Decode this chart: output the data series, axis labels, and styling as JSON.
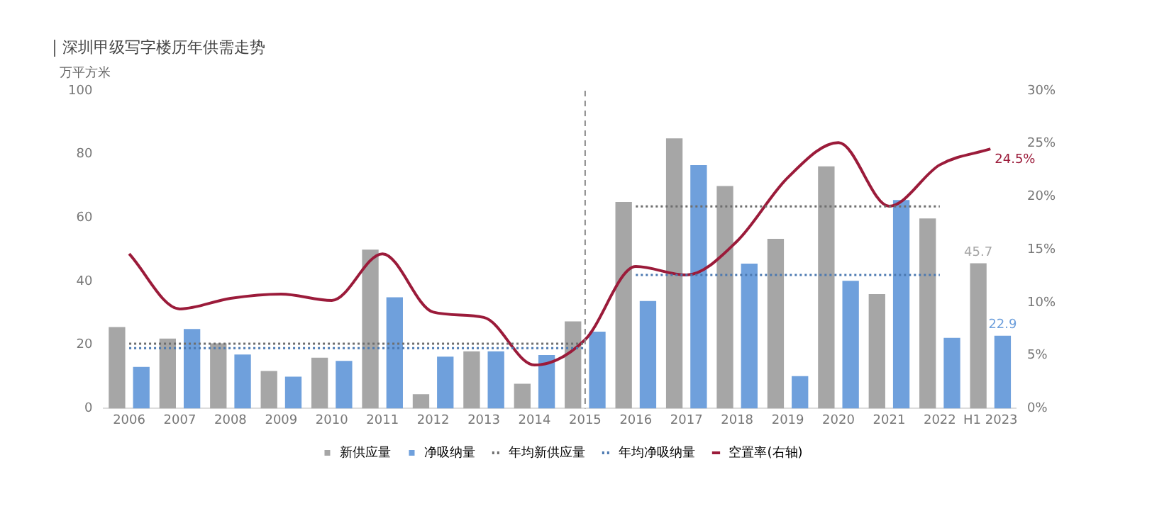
{
  "chart_data": {
    "type": "bar",
    "title": "深圳甲级写字楼历年供需走势",
    "ylabel": "万平方米",
    "categories": [
      "2006",
      "2007",
      "2008",
      "2009",
      "2010",
      "2011",
      "2012",
      "2013",
      "2014",
      "2015",
      "2016",
      "2017",
      "2018",
      "2019",
      "2020",
      "2021",
      "2022",
      "H1 2023"
    ],
    "series": [
      {
        "name": "新供应量",
        "color": "#a6a6a6",
        "values": [
          25.6,
          22,
          20.5,
          11.8,
          16,
          50,
          4.5,
          18,
          7.8,
          27.4,
          65,
          85,
          70,
          53.4,
          76.2,
          36,
          59.8,
          45.7
        ],
        "value_labels": [
          null,
          null,
          null,
          null,
          null,
          null,
          null,
          null,
          null,
          null,
          null,
          null,
          null,
          null,
          null,
          null,
          null,
          "45.7"
        ]
      },
      {
        "name": "净吸纳量",
        "color": "#6fa0dc",
        "values": [
          13.1,
          25,
          17,
          10,
          15,
          35,
          16.3,
          18,
          16.8,
          24.2,
          33.8,
          76.6,
          45.6,
          10.2,
          40.2,
          65.6,
          22.2,
          22.9
        ],
        "value_labels": [
          null,
          null,
          null,
          null,
          null,
          null,
          null,
          null,
          null,
          null,
          null,
          null,
          null,
          null,
          null,
          null,
          null,
          "22.9"
        ]
      },
      {
        "name": "年均新供应量",
        "type": "line",
        "line_style": "dotted",
        "color": "#6e6e6e",
        "values": [
          20.4,
          20.4,
          20.4,
          20.4,
          20.4,
          20.4,
          20.4,
          20.4,
          20.4,
          20.4,
          63.6,
          63.6,
          63.6,
          63.6,
          63.6,
          63.6,
          63.6,
          null
        ]
      },
      {
        "name": "年均净吸纳量",
        "type": "line",
        "line_style": "dotted",
        "color": "#4a78b0",
        "values": [
          19,
          19,
          19,
          19,
          19,
          19,
          19,
          19,
          19,
          19,
          42,
          42,
          42,
          42,
          42,
          42,
          42,
          null
        ]
      },
      {
        "name": "空置率(右轴)",
        "type": "line",
        "axis": "y2",
        "color": "#9b1b3a",
        "values": [
          14.6,
          9.4,
          10.4,
          10.8,
          10.2,
          14.6,
          9.1,
          8.6,
          4.1,
          6.5,
          13.4,
          12.6,
          15.8,
          21.8,
          25.1,
          19.1,
          23,
          24.5
        ],
        "value_labels": [
          null,
          null,
          null,
          null,
          null,
          null,
          null,
          null,
          null,
          null,
          null,
          null,
          null,
          null,
          null,
          null,
          null,
          "24.5%"
        ]
      }
    ],
    "ylim": [
      0,
      100
    ],
    "yticks": [
      0,
      20,
      40,
      60,
      80,
      100
    ],
    "y2lim": [
      0,
      30
    ],
    "y2ticks": [
      {
        "value": 0,
        "label": "0%"
      },
      {
        "value": 5,
        "label": "5%"
      },
      {
        "value": 10,
        "label": "10%"
      },
      {
        "value": 15,
        "label": "15%"
      },
      {
        "value": 20,
        "label": "20%"
      },
      {
        "value": 25,
        "label": "25%"
      },
      {
        "value": 30,
        "label": "30%"
      }
    ],
    "ref_lines": [
      {
        "axis": "x",
        "value": "2015",
        "line_style": "dashed",
        "color": "#8a8a8a"
      }
    ],
    "grid": false,
    "legend": "bottom"
  }
}
